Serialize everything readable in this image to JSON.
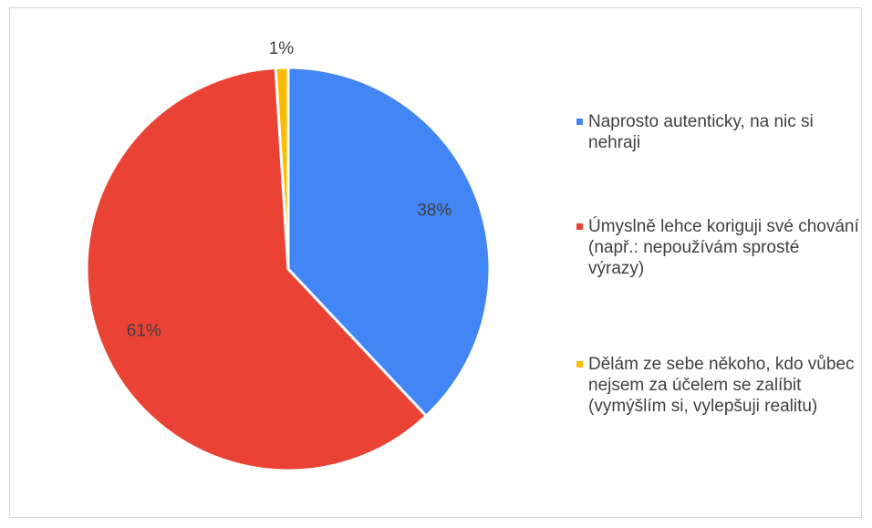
{
  "chart_data": {
    "type": "pie",
    "categories": [
      "Naprosto autenticky, na nic si nehraji",
      "Úmyslně lehce koriguji své chování (např.: nepoužívám sprosté výrazy)",
      "Dělám ze sebe někoho, kdo vůbec nejsem za účelem se zalíbit (vymýšlím si, vylepšuji realitu)"
    ],
    "values": [
      38,
      61,
      1
    ],
    "value_labels": [
      "38%",
      "61%",
      "1%"
    ],
    "colors": [
      "#4285f4",
      "#ea4335",
      "#fbbc04"
    ],
    "legend": "right"
  }
}
